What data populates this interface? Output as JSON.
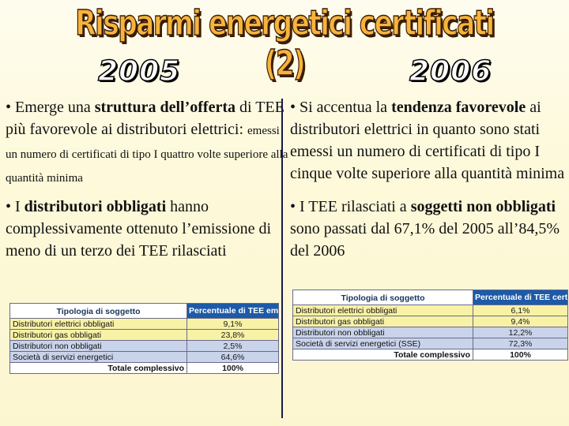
{
  "title": "Risparmi energetici certificati (2)",
  "year_left": "2005",
  "year_right": "2006",
  "left": {
    "p1_bullet": "• Emerge una ",
    "p1_bold": "struttura dell’offerta",
    "p1_text": " di TEE più favorevole ai distributori elettrici: ",
    "p1_small": "emessi un numero di certificati di tipo I quattro volte superiore alla quantità minima",
    "p2_bullet": "• I ",
    "p2_bold": "distributori obbligati",
    "p2_text": " hanno complessivamente ottenuto l’emissione di meno di un terzo dei TEE rilasciati"
  },
  "right": {
    "p1_bullet": "• Si accentua la ",
    "p1_bold": "tendenza favorevole",
    "p1_text": " ai distributori elettrici in quanto sono stati emessi un numero di certificati di tipo I cinque volte superiore alla quantità minima",
    "p2_bullet": "• I TEE rilasciati a ",
    "p2_bold1": "soggetti non obbligati",
    "p2_text": " sono passati dal 67,1% del 2005 all’84,5% del 2006"
  },
  "table_2005": {
    "col_type": "Tipologia di soggetto",
    "col_pct": "Percentuale di TEE emessi rispetto al totale",
    "rows": [
      {
        "label": "Distributori elettrici obbligati",
        "value": "9,1%"
      },
      {
        "label": "Distributori gas obbligati",
        "value": "23,8%"
      },
      {
        "label": "Distributori non obbligati",
        "value": "2,5%"
      },
      {
        "label": "Società di servizi energetici",
        "value": "64,6%"
      }
    ],
    "total_label": "Totale complessivo",
    "total_value": "100%"
  },
  "table_2006": {
    "col_type": "Tipologia di soggetto",
    "col_pct": "Percentuale di TEE certificati rispetto al totale",
    "rows": [
      {
        "label": "Distributori elettrici obbligati",
        "value": "6,1%"
      },
      {
        "label": "Distributori gas obbligati",
        "value": "9,4%"
      },
      {
        "label": "Distributori non obbligati",
        "value": "12,2%"
      },
      {
        "label": "Società di servizi energetici (SSE)",
        "value": "72,3%"
      }
    ],
    "total_label": "Totale complessivo",
    "total_value": "100%"
  }
}
